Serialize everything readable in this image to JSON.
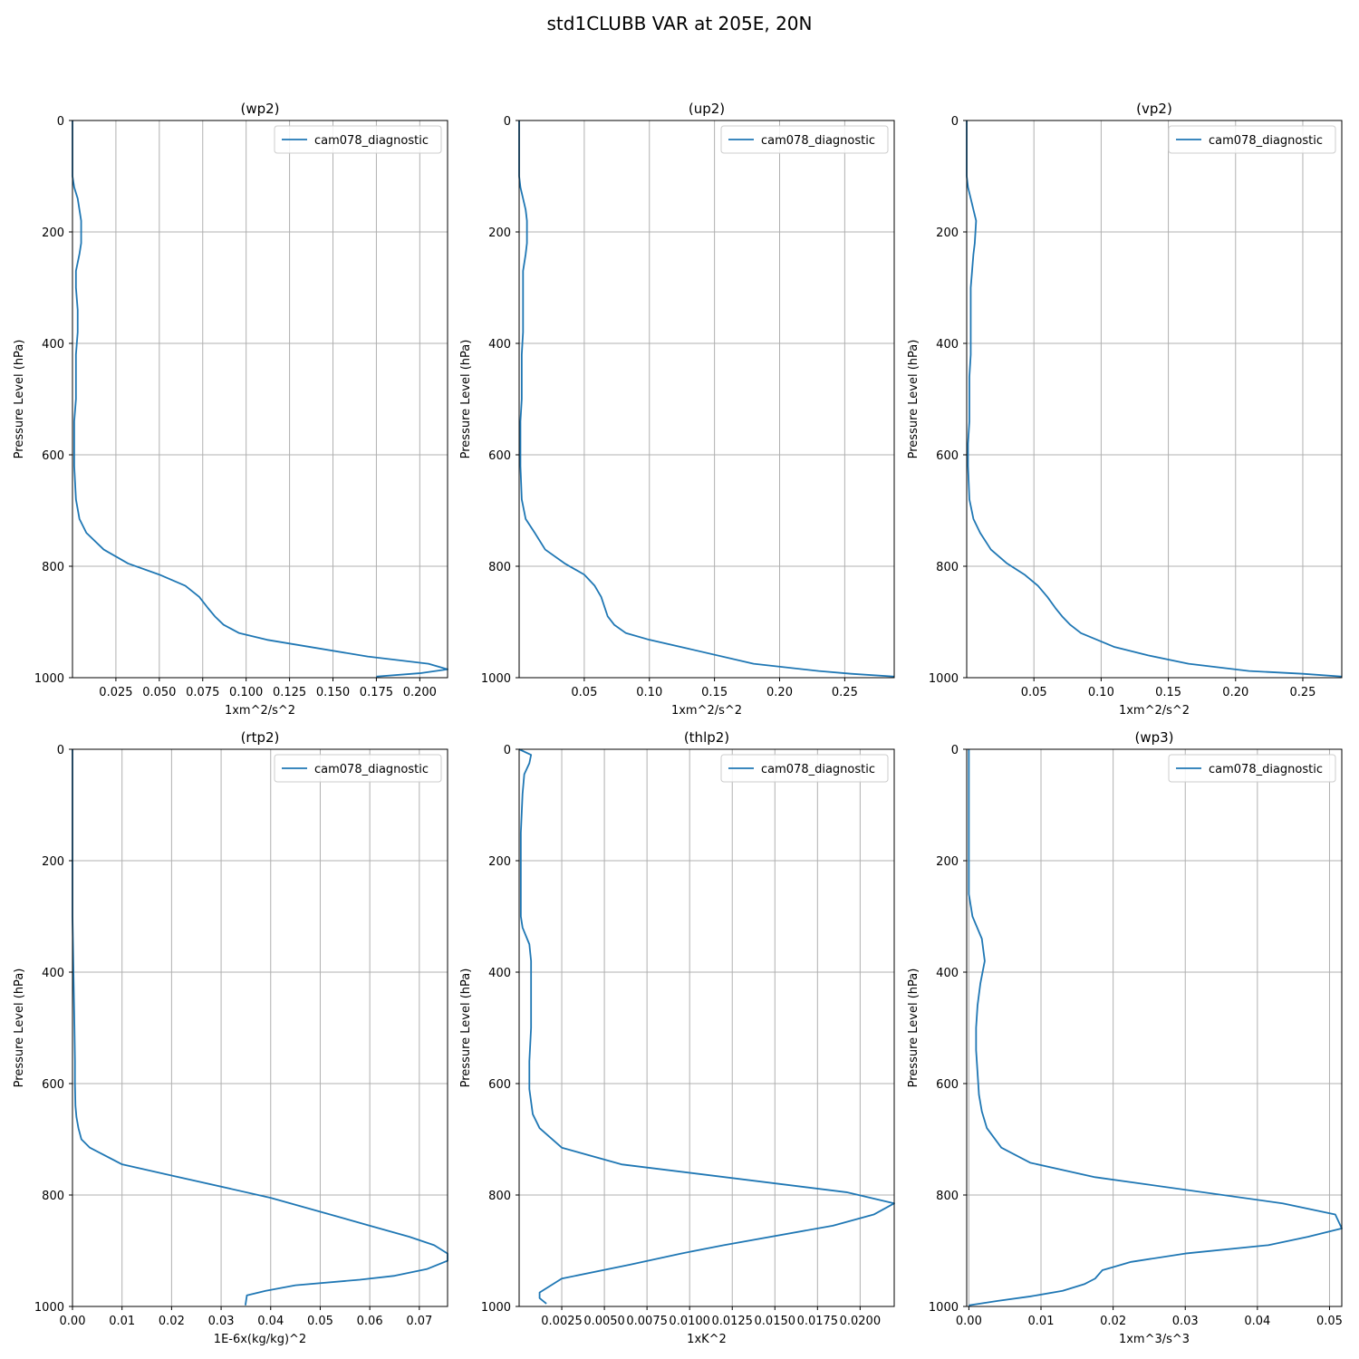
{
  "figure": {
    "title": "std1CLUBB VAR at 205E, 20N",
    "line_color": "#1f77b4",
    "grid_color": "#b0b0b0"
  },
  "chart_data": [
    {
      "type": "line",
      "title": "(wp2)",
      "xlabel": "1xm^2/s^2",
      "ylabel": "Pressure Level (hPa)",
      "xlim": [
        0,
        0.216
      ],
      "ylim": [
        1000,
        0
      ],
      "xticks": [
        0.025,
        0.05,
        0.075,
        0.1,
        0.125,
        0.15,
        0.175,
        0.2
      ],
      "xtick_labels": [
        "0.025",
        "0.050",
        "0.075",
        "0.100",
        "0.125",
        "0.150",
        "0.175",
        "0.200"
      ],
      "yticks": [
        0,
        200,
        400,
        600,
        800,
        1000
      ],
      "ytick_labels": [
        "0",
        "200",
        "400",
        "600",
        "800",
        "1000"
      ],
      "grid": true,
      "legend": "top-right",
      "series": [
        {
          "name": "cam078_diagnostic",
          "x": [
            0.0,
            0.0,
            0.001,
            0.003,
            0.004,
            0.005,
            0.005,
            0.004,
            0.002,
            0.002,
            0.003,
            0.003,
            0.002,
            0.002,
            0.002,
            0.001,
            0.001,
            0.001,
            0.002,
            0.004,
            0.008,
            0.018,
            0.032,
            0.05,
            0.065,
            0.073,
            0.078,
            0.082,
            0.087,
            0.096,
            0.112,
            0.17,
            0.205,
            0.216,
            0.2,
            0.175
          ],
          "y": [
            0,
            100,
            120,
            140,
            160,
            180,
            220,
            240,
            270,
            300,
            340,
            380,
            420,
            460,
            500,
            540,
            580,
            620,
            680,
            715,
            740,
            770,
            795,
            815,
            835,
            855,
            875,
            890,
            905,
            920,
            932,
            962,
            975,
            985,
            992,
            998
          ]
        }
      ]
    },
    {
      "type": "line",
      "title": "(up2)",
      "xlabel": "1xm^2/s^2",
      "ylabel": "Pressure Level (hPa)",
      "xlim": [
        0,
        0.288
      ],
      "ylim": [
        1000,
        0
      ],
      "xticks": [
        0.05,
        0.1,
        0.15,
        0.2,
        0.25
      ],
      "xtick_labels": [
        "0.05",
        "0.10",
        "0.15",
        "0.20",
        "0.25"
      ],
      "yticks": [
        0,
        200,
        400,
        600,
        800,
        1000
      ],
      "ytick_labels": [
        "0",
        "200",
        "400",
        "600",
        "800",
        "1000"
      ],
      "grid": true,
      "legend": "top-right",
      "series": [
        {
          "name": "cam078_diagnostic",
          "x": [
            0.0,
            0.0,
            0.001,
            0.003,
            0.005,
            0.006,
            0.006,
            0.005,
            0.003,
            0.003,
            0.003,
            0.003,
            0.002,
            0.002,
            0.002,
            0.001,
            0.001,
            0.001,
            0.002,
            0.005,
            0.012,
            0.02,
            0.035,
            0.05,
            0.058,
            0.063,
            0.068,
            0.073,
            0.082,
            0.1,
            0.13,
            0.18,
            0.23,
            0.255,
            0.288
          ],
          "y": [
            0,
            100,
            120,
            140,
            160,
            180,
            220,
            240,
            270,
            300,
            340,
            380,
            420,
            460,
            500,
            540,
            580,
            620,
            680,
            715,
            740,
            770,
            795,
            815,
            835,
            855,
            890,
            905,
            920,
            932,
            948,
            975,
            988,
            993,
            998
          ]
        }
      ]
    },
    {
      "type": "line",
      "title": "(vp2)",
      "xlabel": "1xm^2/s^2",
      "ylabel": "Pressure Level (hPa)",
      "xlim": [
        0,
        0.279
      ],
      "ylim": [
        1000,
        0
      ],
      "xticks": [
        0.05,
        0.1,
        0.15,
        0.2,
        0.25
      ],
      "xtick_labels": [
        "0.05",
        "0.10",
        "0.15",
        "0.20",
        "0.25"
      ],
      "yticks": [
        0,
        200,
        400,
        600,
        800,
        1000
      ],
      "ytick_labels": [
        "0",
        "200",
        "400",
        "600",
        "800",
        "1000"
      ],
      "grid": true,
      "legend": "top-right",
      "series": [
        {
          "name": "cam078_diagnostic",
          "x": [
            0.0,
            0.0,
            0.001,
            0.003,
            0.005,
            0.007,
            0.006,
            0.005,
            0.004,
            0.003,
            0.003,
            0.003,
            0.003,
            0.002,
            0.002,
            0.002,
            0.001,
            0.001,
            0.002,
            0.005,
            0.01,
            0.018,
            0.03,
            0.043,
            0.053,
            0.06,
            0.066,
            0.071,
            0.077,
            0.085,
            0.097,
            0.11,
            0.135,
            0.165,
            0.21,
            0.25,
            0.279
          ],
          "y": [
            0,
            100,
            120,
            140,
            160,
            180,
            220,
            240,
            270,
            300,
            340,
            380,
            420,
            460,
            500,
            540,
            580,
            620,
            680,
            715,
            740,
            770,
            795,
            815,
            835,
            855,
            875,
            890,
            905,
            920,
            932,
            945,
            960,
            975,
            988,
            993,
            998
          ]
        }
      ]
    },
    {
      "type": "line",
      "title": "(rtp2)",
      "xlabel": "1E-6x(kg/kg)^2",
      "ylabel": "Pressure Level (hPa)",
      "xlim": [
        0,
        0.0757
      ],
      "ylim": [
        1000,
        0
      ],
      "xticks": [
        0,
        0.01,
        0.02,
        0.03,
        0.04,
        0.05,
        0.06,
        0.07
      ],
      "xtick_labels": [
        "0.00",
        "0.01",
        "0.02",
        "0.03",
        "0.04",
        "0.05",
        "0.06",
        "0.07"
      ],
      "yticks": [
        0,
        200,
        400,
        600,
        800,
        1000
      ],
      "ytick_labels": [
        "0",
        "200",
        "400",
        "600",
        "800",
        "1000"
      ],
      "grid": true,
      "legend": "top-right",
      "series": [
        {
          "name": "cam078_diagnostic",
          "x": [
            0.0,
            0.0,
            0.0,
            0.0002,
            0.0004,
            0.0005,
            0.0005,
            0.0006,
            0.0008,
            0.0012,
            0.0018,
            0.0035,
            0.01,
            0.02,
            0.04,
            0.06,
            0.068,
            0.073,
            0.0757,
            0.0757,
            0.0715,
            0.065,
            0.058,
            0.045,
            0.039,
            0.0352,
            0.0349
          ],
          "y": [
            0,
            100,
            300,
            400,
            500,
            560,
            600,
            640,
            660,
            680,
            700,
            715,
            745,
            765,
            805,
            855,
            875,
            890,
            905,
            918,
            933,
            945,
            952,
            962,
            972,
            980,
            998
          ]
        }
      ]
    },
    {
      "type": "line",
      "title": "(thlp2)",
      "xlabel": "1xK^2",
      "ylabel": "Pressure Level (hPa)",
      "xlim": [
        0,
        0.022
      ],
      "ylim": [
        1000,
        0
      ],
      "xticks": [
        0.0025,
        0.005,
        0.0075,
        0.01,
        0.0125,
        0.015,
        0.0175,
        0.02
      ],
      "xtick_labels": [
        "0.0025",
        "0.0050",
        "0.0075",
        "0.0100",
        "0.0125",
        "0.0150",
        "0.0175",
        "0.0200"
      ],
      "yticks": [
        0,
        200,
        400,
        600,
        800,
        1000
      ],
      "ytick_labels": [
        "0",
        "200",
        "400",
        "600",
        "800",
        "1000"
      ],
      "grid": true,
      "legend": "top-right",
      "series": [
        {
          "name": "cam078_diagnostic",
          "x": [
            0.0,
            0.0007,
            0.0006,
            0.0003,
            0.0002,
            0.0001,
            0.0001,
            0.0001,
            0.0001,
            0.0002,
            0.0006,
            0.0007,
            0.0007,
            0.0007,
            0.0006,
            0.0006,
            0.0008,
            0.0012,
            0.0025,
            0.006,
            0.0192,
            0.022,
            0.0208,
            0.0184,
            0.012,
            0.0095,
            0.0065,
            0.0025,
            0.0012,
            0.0012,
            0.0016
          ],
          "y": [
            0,
            10,
            25,
            45,
            80,
            150,
            230,
            270,
            300,
            320,
            350,
            380,
            430,
            500,
            560,
            610,
            655,
            680,
            715,
            745,
            795,
            815,
            835,
            855,
            890,
            905,
            925,
            950,
            975,
            985,
            995
          ]
        }
      ]
    },
    {
      "type": "line",
      "title": "(wp3)",
      "xlabel": "1xm^3/s^3",
      "ylabel": "Pressure Level (hPa)",
      "xlim": [
        -0.0003,
        0.0517
      ],
      "ylim": [
        1000,
        0
      ],
      "xticks": [
        0,
        0.01,
        0.02,
        0.03,
        0.04,
        0.05
      ],
      "xtick_labels": [
        "0.00",
        "0.01",
        "0.02",
        "0.03",
        "0.04",
        "0.05"
      ],
      "yticks": [
        0,
        200,
        400,
        600,
        800,
        1000
      ],
      "ytick_labels": [
        "0",
        "200",
        "400",
        "600",
        "800",
        "1000"
      ],
      "grid": true,
      "legend": "top-right",
      "series": [
        {
          "name": "cam078_diagnostic",
          "x": [
            0.0,
            0.0,
            0.0,
            0.0,
            0.0,
            0.0005,
            0.0018,
            0.0022,
            0.0016,
            0.0012,
            0.001,
            0.001,
            0.0012,
            0.0014,
            0.0018,
            0.0025,
            0.0045,
            0.0085,
            0.0175,
            0.0435,
            0.0508,
            0.0517,
            0.047,
            0.0415,
            0.03,
            0.0225,
            0.0185,
            0.0175,
            0.016,
            0.013,
            0.0085,
            0.004,
            0.0
          ],
          "y": [
            0,
            100,
            180,
            220,
            260,
            300,
            340,
            380,
            420,
            460,
            500,
            540,
            580,
            620,
            650,
            680,
            715,
            742,
            768,
            815,
            835,
            860,
            875,
            890,
            905,
            920,
            935,
            950,
            960,
            972,
            982,
            990,
            998
          ]
        }
      ]
    }
  ]
}
